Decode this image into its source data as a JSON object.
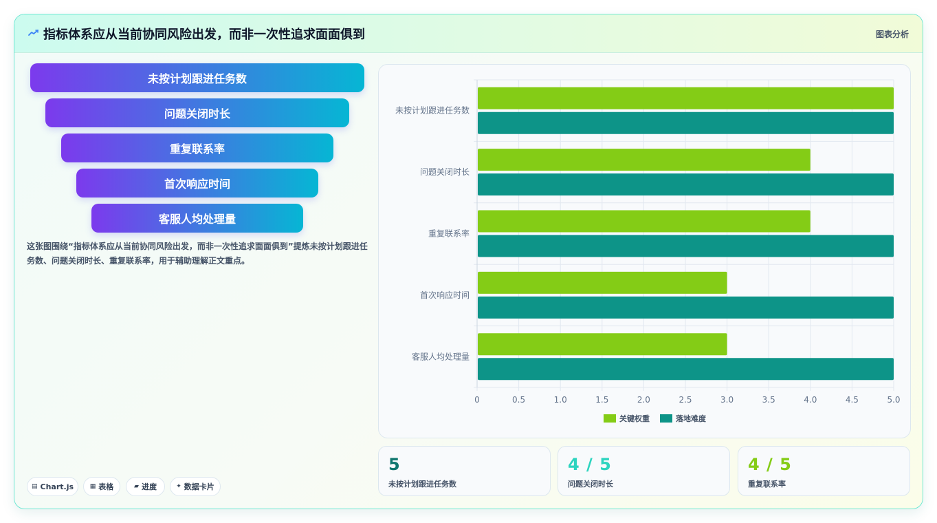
{
  "header": {
    "title": "指标体系应从当前协同风险出发，而非一次性追求面面俱到",
    "tag": "图表分析",
    "icon": "trend-line-icon"
  },
  "funnel": {
    "steps": [
      "未按计划跟进任务数",
      "问题关闭时长",
      "重复联系率",
      "首次响应时间",
      "客服人均处理量"
    ],
    "gradient": [
      "#7c3aed",
      "#06b6d4"
    ]
  },
  "description": "这张图围绕“指标体系应从当前协同风险出发，而非一次性追求面面俱到”提炼未按计划跟进任务数、问题关闭时长、重复联系率，用于辅助理解正文重点。",
  "chips": [
    {
      "icon": "chart-icon",
      "glyph": "▤",
      "label": "Chart.js"
    },
    {
      "icon": "table-icon",
      "glyph": "▦",
      "label": "表格"
    },
    {
      "icon": "progress-icon",
      "glyph": "▰",
      "label": "进度"
    },
    {
      "icon": "sparkle-icon",
      "glyph": "✦",
      "label": "数据卡片"
    }
  ],
  "chart_data": {
    "type": "bar",
    "orientation": "horizontal",
    "categories": [
      "未按计划跟进任务数",
      "问题关闭时长",
      "重复联系率",
      "首次响应时间",
      "客服人均处理量"
    ],
    "series": [
      {
        "name": "关键权重",
        "values": [
          5,
          4,
          4,
          3,
          3
        ],
        "color": "#84cc16"
      },
      {
        "name": "落地难度",
        "values": [
          5,
          5,
          5,
          5,
          5
        ],
        "color": "#0d9488"
      }
    ],
    "xlim": [
      0,
      5
    ],
    "xticks": [
      "0",
      "0.5",
      "1.0",
      "1.5",
      "2.0",
      "2.5",
      "3.0",
      "3.5",
      "4.0",
      "4.5",
      "5.0"
    ],
    "grid": true,
    "legend_position": "bottom"
  },
  "kpis": [
    {
      "value": "5",
      "label": "未按计划跟进任务数",
      "color": "#0f766e"
    },
    {
      "value": "4 / 5",
      "label": "问题关闭时长",
      "color": "#2dd4bf"
    },
    {
      "value": "4 / 5",
      "label": "重复联系率",
      "color": "#84cc16"
    }
  ]
}
